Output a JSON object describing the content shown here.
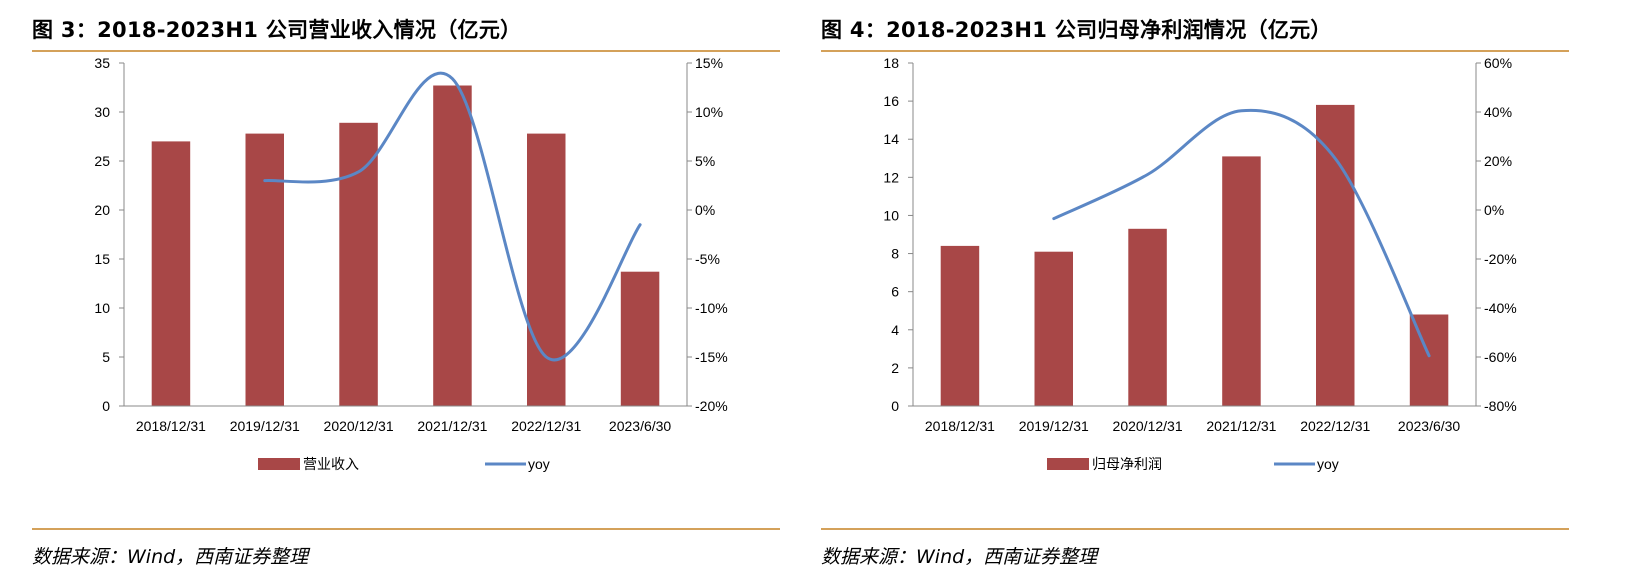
{
  "colors": {
    "bar": "#A84747",
    "line": "#5B87C5",
    "rule": "#D4A15A",
    "axis": "#888888"
  },
  "charts": [
    {
      "title": "图 3：2018-2023H1 公司营业收入情况（亿元）",
      "source": "数据来源：Wind，西南证券整理",
      "chart_data": {
        "type": "bar",
        "categories": [
          "2018/12/31",
          "2019/12/31",
          "2020/12/31",
          "2021/12/31",
          "2022/12/31",
          "2023/6/30"
        ],
        "series": [
          {
            "name": "营业收入",
            "type": "bar",
            "axis": "left",
            "values": [
              27.0,
              27.8,
              28.9,
              32.7,
              27.8,
              13.7
            ]
          },
          {
            "name": "yoy",
            "type": "line",
            "axis": "right",
            "values": [
              null,
              3.0,
              3.9,
              13.4,
              -15.0,
              -1.5
            ]
          }
        ],
        "left_axis": {
          "min": 0,
          "max": 35,
          "ticks": [
            "35",
            "30",
            "25",
            "20",
            "15",
            "10",
            "5",
            "0"
          ]
        },
        "right_axis": {
          "min": -20,
          "max": 15,
          "ticks": [
            "15%",
            "10%",
            "5%",
            "0%",
            "-5%",
            "-10%",
            "-15%",
            "-20%"
          ]
        },
        "legend_position": "bottom"
      }
    },
    {
      "title": "图 4：2018-2023H1 公司归母净利润情况（亿元）",
      "source": "数据来源：Wind，西南证券整理",
      "chart_data": {
        "type": "bar",
        "categories": [
          "2018/12/31",
          "2019/12/31",
          "2020/12/31",
          "2021/12/31",
          "2022/12/31",
          "2023/6/30"
        ],
        "series": [
          {
            "name": "归母净利润",
            "type": "bar",
            "axis": "left",
            "values": [
              8.4,
              8.1,
              9.3,
              13.1,
              15.8,
              4.8
            ]
          },
          {
            "name": "yoy",
            "type": "line",
            "axis": "right",
            "values": [
              null,
              -3.5,
              14.5,
              40.5,
              21.0,
              -59.5
            ]
          }
        ],
        "left_axis": {
          "min": 0,
          "max": 18,
          "ticks": [
            "18",
            "16",
            "14",
            "12",
            "10",
            "8",
            "6",
            "4",
            "2",
            "0"
          ]
        },
        "right_axis": {
          "min": -80,
          "max": 60,
          "ticks": [
            "60%",
            "40%",
            "20%",
            "0%",
            "-20%",
            "-40%",
            "-60%",
            "-80%"
          ]
        },
        "legend_position": "bottom"
      }
    }
  ]
}
